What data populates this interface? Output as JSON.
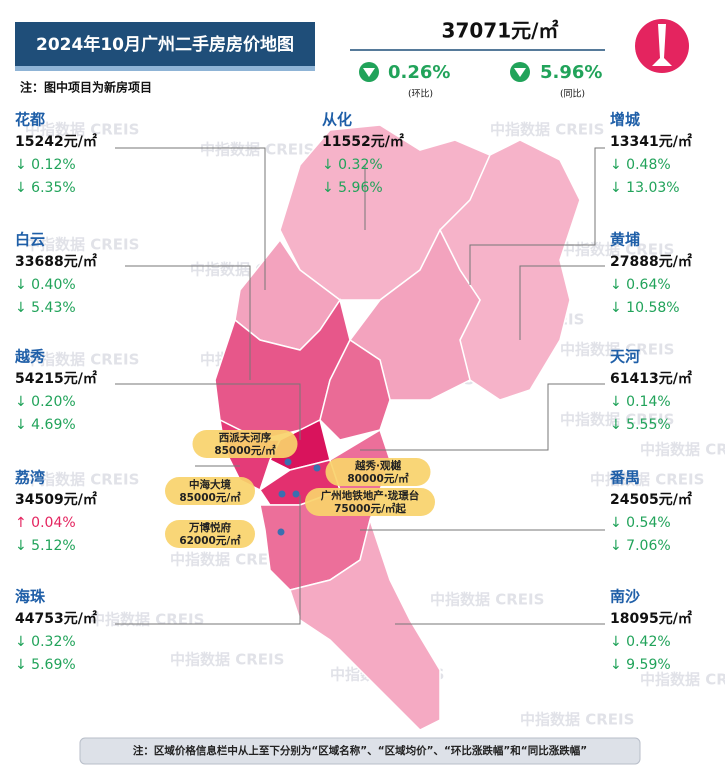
{
  "header": {
    "title": "2024年10月广州二手房房价地图",
    "note": "注：图中项目为新房项目"
  },
  "summary": {
    "price": "37071元/㎡",
    "mom": "0.26%",
    "mom_label": "(环比)",
    "yoy": "5.96%",
    "yoy_label": "(同比)"
  },
  "watermark": "中指数据 CREIS",
  "districts": [
    {
      "name": "花都",
      "price": "15242元/㎡",
      "mom": "↓ 0.12%",
      "yoy": "↓ 6.35%"
    },
    {
      "name": "白云",
      "price": "33688元/㎡",
      "mom": "↓ 0.40%",
      "yoy": "↓ 5.43%"
    },
    {
      "name": "越秀",
      "price": "54215元/㎡",
      "mom": "↓ 0.20%",
      "yoy": "↓ 4.69%"
    },
    {
      "name": "荔湾",
      "price": "34509元/㎡",
      "mom": "↑ 0.04%",
      "yoy": "↓ 5.12%"
    },
    {
      "name": "海珠",
      "price": "44753元/㎡",
      "mom": "↓ 0.32%",
      "yoy": "↓ 5.69%"
    },
    {
      "name": "从化",
      "price": "11552元/㎡",
      "mom": "↓ 0.32%",
      "yoy": "↓ 5.96%"
    },
    {
      "name": "增城",
      "price": "13341元/㎡",
      "mom": "↓ 0.48%",
      "yoy": "↓ 13.03%"
    },
    {
      "name": "黄埔",
      "price": "27888元/㎡",
      "mom": "↓ 0.64%",
      "yoy": "↓ 10.58%"
    },
    {
      "name": "天河",
      "price": "61413元/㎡",
      "mom": "↓ 0.14%",
      "yoy": "↓ 5.55%"
    },
    {
      "name": "番禺",
      "price": "24505元/㎡",
      "mom": "↓ 0.54%",
      "yoy": "↓ 7.06%"
    },
    {
      "name": "南沙",
      "price": "18095元/㎡",
      "mom": "↓ 0.42%",
      "yoy": "↓ 9.59%"
    }
  ],
  "projects": [
    {
      "name": "西派天河序",
      "price": "85000元/㎡"
    },
    {
      "name": "中海大境",
      "price": "85000元/㎡"
    },
    {
      "name": "万博悦府",
      "price": "62000元/㎡"
    },
    {
      "name": "越秀·观樾",
      "price": "80000元/㎡"
    },
    {
      "name": "广州地铁地产·珑璟台",
      "price": "75000元/㎡起"
    }
  ],
  "footer": {
    "note": "注：区域价格信息栏中从上至下分别为“区域名称”、“区域均价”、“环比涨跌幅”和“同比涨跌幅”"
  }
}
